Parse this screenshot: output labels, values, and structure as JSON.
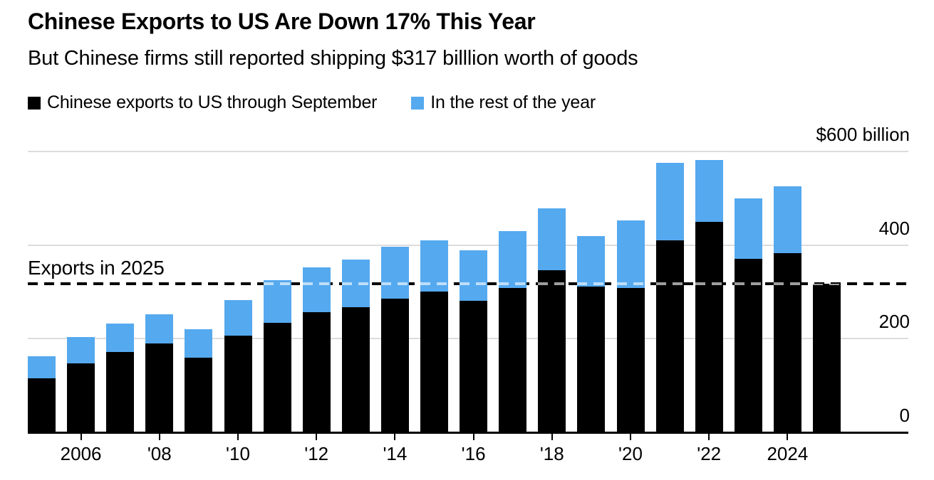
{
  "header": {
    "title": "Chinese Exports to US Are Down 17% This Year",
    "subtitle": "But Chinese firms still reported shipping $317 billlion worth of goods"
  },
  "legend": {
    "items": [
      {
        "label": "Chinese exports to US through September",
        "color": "#000000"
      },
      {
        "label": "In the rest of the year",
        "color": "#55a9ef"
      }
    ]
  },
  "chart_data": {
    "type": "bar",
    "stacked": true,
    "title": "Chinese Exports to US Are Down 17% This Year",
    "subtitle": "But Chinese firms still reported shipping $317 billlion worth of goods",
    "unit": "$ billion",
    "categories": [
      2005,
      2006,
      2007,
      2008,
      2009,
      2010,
      2011,
      2012,
      2013,
      2014,
      2015,
      2016,
      2017,
      2018,
      2019,
      2020,
      2021,
      2022,
      2023,
      2024,
      2025
    ],
    "series": [
      {
        "name": "Chinese exports to US through September",
        "color": "#000000",
        "values": [
          115,
          147,
          171,
          190,
          159,
          206,
          234,
          257,
          267,
          285,
          300,
          281,
          308,
          347,
          312,
          308,
          410,
          449,
          371,
          383,
          317
        ]
      },
      {
        "name": "In the rest of the year",
        "color": "#55a9ef",
        "values": [
          47,
          57,
          62,
          62,
          62,
          77,
          91,
          95,
          102,
          112,
          110,
          108,
          122,
          131,
          107,
          144,
          166,
          133,
          129,
          142,
          0
        ]
      }
    ],
    "ylim": [
      0,
      600
    ],
    "yticks": [
      {
        "value": 0,
        "label": "0"
      },
      {
        "value": 200,
        "label": "200"
      },
      {
        "value": 400,
        "label": "400"
      },
      {
        "value": 600,
        "label": "$600 billion"
      }
    ],
    "xticks": [
      {
        "year": 2006,
        "label": "2006"
      },
      {
        "year": 2008,
        "label": "'08"
      },
      {
        "year": 2010,
        "label": "'10"
      },
      {
        "year": 2012,
        "label": "'12"
      },
      {
        "year": 2014,
        "label": "'14"
      },
      {
        "year": 2016,
        "label": "'16"
      },
      {
        "year": 2018,
        "label": "'18"
      },
      {
        "year": 2020,
        "label": "'20"
      },
      {
        "year": 2022,
        "label": "'22"
      },
      {
        "year": 2024,
        "label": "2024"
      }
    ],
    "reference_line": {
      "label": "Exports in 2025",
      "value": 317,
      "style": "dashed"
    },
    "grid": true,
    "legend_position": "top"
  }
}
